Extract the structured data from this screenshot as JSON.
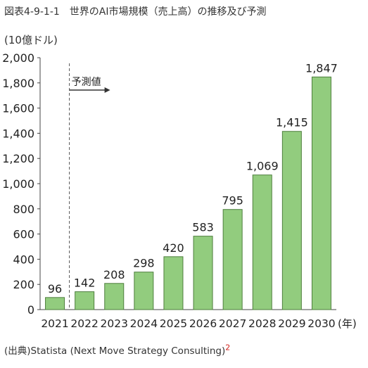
{
  "figure": {
    "title": "図表4-9-1-1　世界のAI市場規模（売上高）の推移及び予測",
    "y_unit": "(10億ドル)",
    "x_unit": "(年)",
    "source_prefix": "(出典)",
    "source_text": "Statista (Next Move Strategy Consulting)",
    "source_note": "2",
    "forecast_label": "予測値"
  },
  "chart_data": {
    "type": "bar",
    "title": "世界のAI市場規模（売上高）の推移及び予測",
    "categories": [
      "2021",
      "2022",
      "2023",
      "2024",
      "2025",
      "2026",
      "2027",
      "2028",
      "2029",
      "2030"
    ],
    "values": [
      96,
      142,
      208,
      298,
      420,
      583,
      795,
      1069,
      1415,
      1847
    ],
    "value_labels": [
      "96",
      "142",
      "208",
      "298",
      "420",
      "583",
      "795",
      "1,069",
      "1,415",
      "1,847"
    ],
    "ylabel": "(10億ドル)",
    "xlabel": "(年)",
    "ylim": [
      0,
      2000
    ],
    "yticks": [
      0,
      200,
      400,
      600,
      800,
      1000,
      1200,
      1400,
      1600,
      1800,
      2000
    ],
    "ytick_labels": [
      "0",
      "200",
      "400",
      "600",
      "800",
      "1,000",
      "1,200",
      "1,400",
      "1,600",
      "1,800",
      "2,000"
    ],
    "forecast_start": "2022",
    "bar_color": "#92cc7e",
    "bar_edge_color": "#4f7f3e",
    "grid": false
  }
}
